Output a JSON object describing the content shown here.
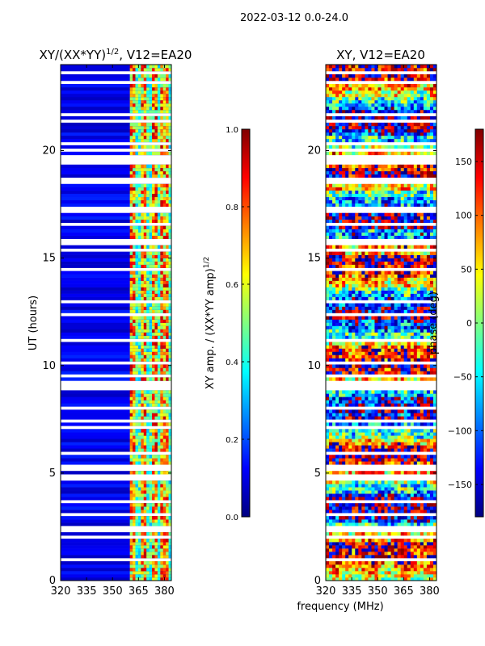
{
  "figure": {
    "suptitle": "2022-03-12 0.0-24.0",
    "xlabel": "frequency (MHz)"
  },
  "colors": {
    "jet": [
      "#000080",
      "#0000ff",
      "#0080ff",
      "#00ffff",
      "#80ff80",
      "#ffff00",
      "#ff8000",
      "#ff0000",
      "#800000"
    ],
    "frame": "#000000"
  },
  "chart_data": [
    {
      "type": "heatmap",
      "title": "XY/(XX*YY)",
      "title_sup": "1/2",
      "title_suffix": ", V12=EA20",
      "ylabel": "UT (hours)",
      "xlim": [
        320,
        384
      ],
      "ylim": [
        0,
        24
      ],
      "xticks": [
        320,
        335,
        350,
        365,
        380
      ],
      "yticks": [
        0,
        5,
        10,
        15,
        20
      ],
      "colorbar": {
        "label": "XY amp. / (XX*YY amp)",
        "label_sup": "1/2",
        "range": [
          0.0,
          1.0
        ],
        "ticks": [
          "0.0",
          "0.2",
          "0.4",
          "0.6",
          "0.8",
          "1.0"
        ],
        "tick_values": [
          0.0,
          0.2,
          0.4,
          0.6,
          0.8,
          1.0
        ]
      },
      "description_values": {
        "background_level": 0.05,
        "band_channels_MHz": [
          362,
          368,
          374,
          380
        ],
        "band_level_range": [
          0.35,
          0.95
        ]
      }
    },
    {
      "type": "heatmap",
      "title": "XY, V12=EA20",
      "ylabel": "",
      "xlim": [
        320,
        384
      ],
      "ylim": [
        0,
        24
      ],
      "xticks": [
        320,
        335,
        350,
        365,
        380
      ],
      "yticks": [
        0,
        5,
        10,
        15,
        20
      ],
      "colorbar": {
        "label": "phase (deg)",
        "range": [
          -180,
          180
        ],
        "ticks": [
          "−150",
          "−100",
          "−50",
          "0",
          "50",
          "100",
          "150"
        ],
        "tick_values": [
          -150,
          -100,
          -50,
          0,
          50,
          100,
          150
        ]
      }
    }
  ]
}
